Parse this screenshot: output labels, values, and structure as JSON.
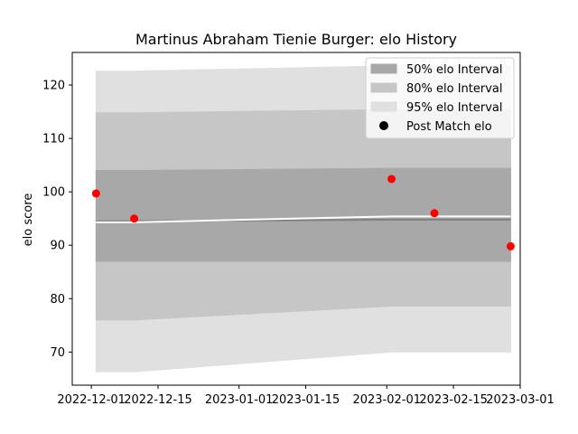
{
  "chart_data": {
    "type": "line",
    "title": "Martinus Abraham Tienie Burger: elo History",
    "xlabel": "",
    "ylabel": "elo score",
    "x_tick_labels": [
      "2022-12-01",
      "2022-12-15",
      "2023-01-01",
      "2023-01-15",
      "2023-02-01",
      "2023-02-15",
      "2023-03-01"
    ],
    "xlim": [
      "2022-11-27",
      "2023-03-01"
    ],
    "y_ticks": [
      70,
      80,
      90,
      100,
      110,
      120
    ],
    "ylim": [
      63.8,
      126.1
    ],
    "legend_position": "top-right",
    "legend": [
      {
        "label": "50% elo Interval",
        "kind": "band",
        "color": "#a8a8a8"
      },
      {
        "label": "80% elo Interval",
        "kind": "band",
        "color": "#c6c6c6"
      },
      {
        "label": "95% elo Interval",
        "kind": "band",
        "color": "#e0e0e0"
      },
      {
        "label": "Post Match elo",
        "kind": "point",
        "color": "#000000"
      }
    ],
    "dates": [
      "2022-12-02",
      "2022-12-10",
      "2023-02-02",
      "2023-02-11",
      "2023-02-27"
    ],
    "mean": [
      94.5,
      94.5,
      94.8,
      94.8,
      94.8
    ],
    "mean_color": "#808080",
    "median": [
      94.3,
      94.3,
      95.4,
      95.4,
      95.4
    ],
    "median_color": "#ffffff",
    "band_50": {
      "lower": [
        87.0,
        87.0,
        87.0,
        87.0,
        87.0
      ],
      "upper": [
        104.0,
        104.0,
        104.4,
        104.4,
        104.4
      ],
      "color": "#a8a8a8"
    },
    "band_80": {
      "lower": [
        76.0,
        76.0,
        78.6,
        78.6,
        78.6
      ],
      "upper": [
        114.8,
        114.8,
        115.4,
        115.4,
        115.4
      ],
      "color": "#c6c6c6"
    },
    "band_95": {
      "lower": [
        66.3,
        66.3,
        70.0,
        70.0,
        70.0
      ],
      "upper": [
        122.6,
        122.6,
        123.6,
        123.6,
        123.6
      ],
      "color": "#e0e0e0"
    },
    "series": [
      {
        "name": "Post Match elo",
        "kind": "scatter",
        "color": "#ff0000",
        "points": [
          {
            "x": "2022-12-02",
            "y": 99.7
          },
          {
            "x": "2022-12-10",
            "y": 95.0
          },
          {
            "x": "2023-02-02",
            "y": 102.4
          },
          {
            "x": "2023-02-11",
            "y": 96.0
          },
          {
            "x": "2023-02-27",
            "y": 89.8
          }
        ]
      }
    ]
  }
}
